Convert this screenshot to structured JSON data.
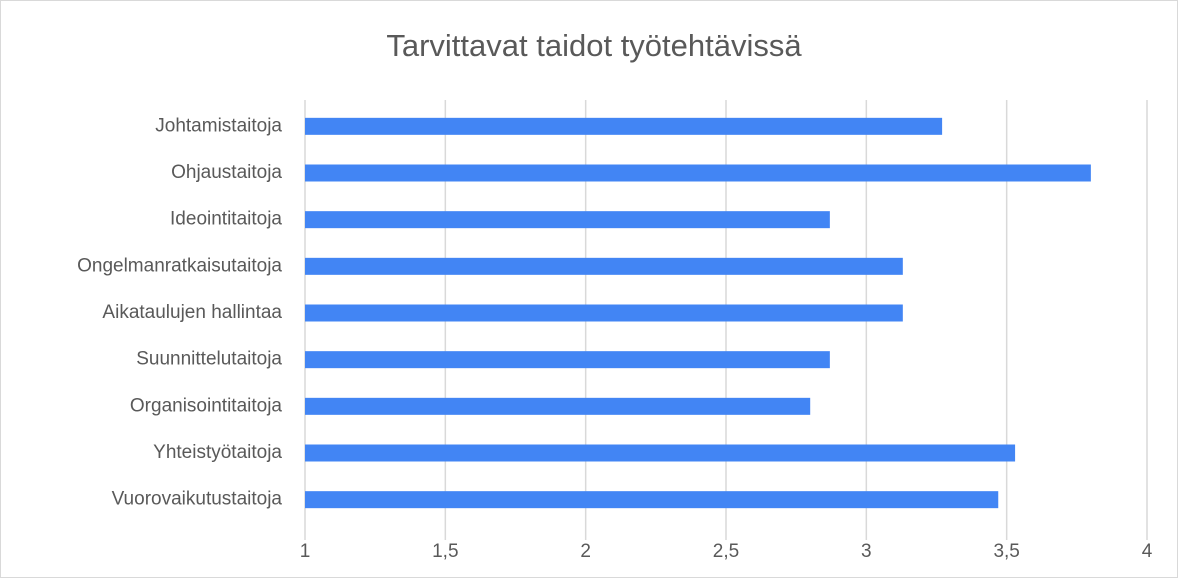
{
  "chart_data": {
    "type": "bar",
    "orientation": "horizontal",
    "title": "Tarvittavat taidot työtehtävissä",
    "categories": [
      "Johtamistaitoja",
      "Ohjaustaitoja",
      "Ideointitaitoja",
      "Ongelmanratkaisutaitoja",
      "Aikataulujen hallintaa",
      "Suunnittelutaitoja",
      "Organisointitaitoja",
      "Yhteistyötaitoja",
      "Vuorovaikutustaitoja"
    ],
    "values": [
      3.27,
      3.8,
      2.87,
      3.13,
      3.13,
      2.87,
      2.8,
      3.53,
      3.47
    ],
    "color": "#4285f4",
    "xlim": [
      1,
      4
    ],
    "xticks": [
      1,
      {
        "value": 1.5,
        "label": "1,5"
      },
      2,
      {
        "value": 2.5,
        "label": "2,5"
      },
      3,
      {
        "value": 3.5,
        "label": "3,5"
      },
      4
    ],
    "grid": true
  }
}
